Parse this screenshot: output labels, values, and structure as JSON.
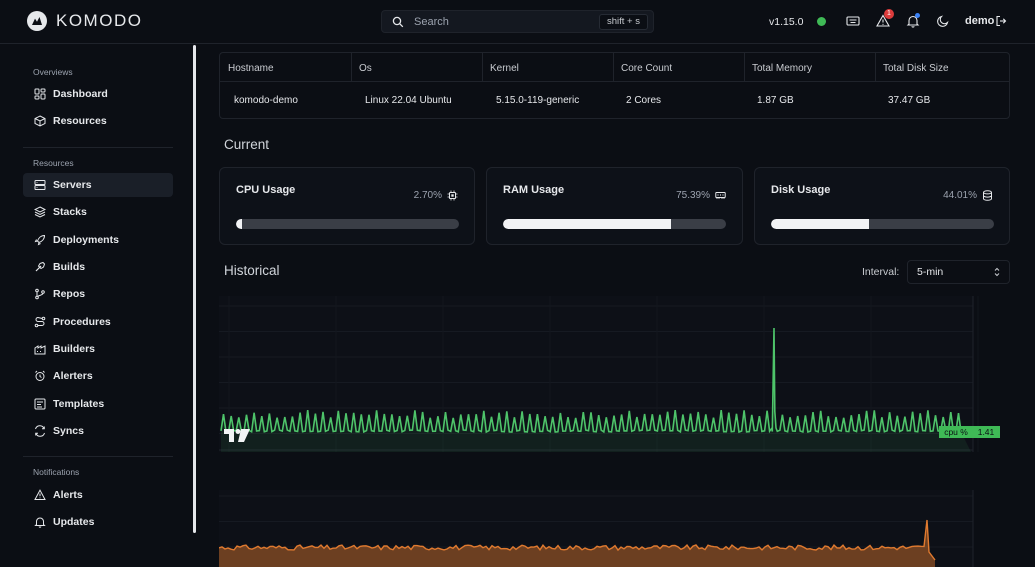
{
  "app": {
    "name": "KOMODO",
    "version": "v1.15.0",
    "user": "demo",
    "alerts_count": "1"
  },
  "search": {
    "placeholder": "Search",
    "shortcut": "shift + s"
  },
  "sidebar": {
    "sections": [
      {
        "title": "Overviews",
        "items": [
          {
            "label": "Dashboard",
            "icon": "dashboard-icon"
          },
          {
            "label": "Resources",
            "icon": "box-icon"
          }
        ]
      },
      {
        "title": "Resources",
        "items": [
          {
            "label": "Servers",
            "icon": "server-icon",
            "active": true
          },
          {
            "label": "Stacks",
            "icon": "layers-icon"
          },
          {
            "label": "Deployments",
            "icon": "rocket-icon"
          },
          {
            "label": "Builds",
            "icon": "hammer-icon"
          },
          {
            "label": "Repos",
            "icon": "git-branch-icon"
          },
          {
            "label": "Procedures",
            "icon": "route-icon"
          },
          {
            "label": "Builders",
            "icon": "factory-icon"
          },
          {
            "label": "Alerters",
            "icon": "alarm-icon"
          },
          {
            "label": "Templates",
            "icon": "template-icon"
          },
          {
            "label": "Syncs",
            "icon": "sync-icon"
          }
        ]
      },
      {
        "title": "Notifications",
        "items": [
          {
            "label": "Alerts",
            "icon": "alert-triangle-icon"
          },
          {
            "label": "Updates",
            "icon": "bell-icon"
          }
        ]
      }
    ]
  },
  "server_info": {
    "headers": [
      "Hostname",
      "Os",
      "Kernel",
      "Core Count",
      "Total Memory",
      "Total Disk Size"
    ],
    "values": [
      "komodo-demo",
      "Linux 22.04 Ubuntu",
      "5.15.0-119-generic",
      "2 Cores",
      "1.87 GB",
      "37.47 GB"
    ]
  },
  "current": {
    "title": "Current",
    "cards": [
      {
        "title": "CPU Usage",
        "percent_text": "2.70%",
        "value": 0.027,
        "icon": "cpu-icon"
      },
      {
        "title": "RAM Usage",
        "percent_text": "75.39%",
        "value": 0.7539,
        "icon": "memory-icon"
      },
      {
        "title": "Disk Usage",
        "percent_text": "44.01%",
        "value": 0.4401,
        "icon": "database-icon"
      }
    ]
  },
  "historical": {
    "title": "Historical",
    "interval_label": "Interval:",
    "interval_value": "5-min"
  },
  "chart_data": [
    {
      "type": "line",
      "series": [
        {
          "name": "cpu %",
          "last_value": "1.41",
          "color": "#4ec46a"
        }
      ],
      "baseline": 1.0,
      "peak": 9.7
    },
    {
      "type": "area",
      "series": [
        {
          "color": "#e07a2f"
        }
      ]
    }
  ],
  "colors": {
    "accent_green": "#3fba56",
    "series_green": "#4ec46a",
    "series_orange": "#e07a2f",
    "background": "#0b0e14"
  }
}
